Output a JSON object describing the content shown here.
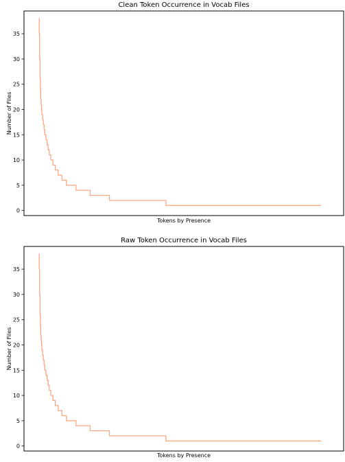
{
  "chart_data": [
    {
      "type": "line",
      "title": "Clean Token Occurrence in Vocab Files",
      "xlabel": "Tokens by Presence",
      "ylabel": "Number of Files",
      "ylim": [
        -1,
        39.5
      ],
      "xlim": [
        -40,
        820
      ],
      "yticks": [
        0,
        5,
        10,
        15,
        20,
        25,
        30,
        35
      ],
      "xticks_shown": false,
      "grid": false,
      "color": "#ffa07a",
      "points": [
        [
          0,
          38
        ],
        [
          1,
          35
        ],
        [
          2,
          30
        ],
        [
          3,
          26
        ],
        [
          4,
          24
        ],
        [
          5,
          22
        ],
        [
          6,
          21
        ],
        [
          7,
          20
        ],
        [
          8,
          19
        ],
        [
          10,
          18
        ],
        [
          12,
          17
        ],
        [
          14,
          16
        ],
        [
          16,
          15
        ],
        [
          19,
          14
        ],
        [
          22,
          13
        ],
        [
          25,
          12
        ],
        [
          28,
          11
        ],
        [
          32,
          10
        ],
        [
          38,
          9
        ],
        [
          44,
          8
        ],
        [
          52,
          7
        ],
        [
          62,
          6
        ],
        [
          74,
          5
        ],
        [
          100,
          4
        ],
        [
          138,
          3
        ],
        [
          190,
          2
        ],
        [
          342,
          1
        ],
        [
          760,
          1
        ]
      ]
    },
    {
      "type": "line",
      "title": "Raw Token Occurrence in Vocab Files",
      "xlabel": "Tokens by Presence",
      "ylabel": "Number of Files",
      "ylim": [
        -1,
        39.5
      ],
      "xlim": [
        -40,
        820
      ],
      "yticks": [
        0,
        5,
        10,
        15,
        20,
        25,
        30,
        35
      ],
      "xticks_shown": false,
      "grid": false,
      "color": "#ffa07a",
      "points": [
        [
          0,
          38
        ],
        [
          1,
          35
        ],
        [
          2,
          30
        ],
        [
          3,
          26
        ],
        [
          4,
          24
        ],
        [
          5,
          22
        ],
        [
          6,
          21
        ],
        [
          7,
          20
        ],
        [
          8,
          19
        ],
        [
          10,
          18
        ],
        [
          12,
          17
        ],
        [
          14,
          16
        ],
        [
          16,
          15
        ],
        [
          19,
          14
        ],
        [
          22,
          13
        ],
        [
          25,
          12
        ],
        [
          28,
          11
        ],
        [
          32,
          10
        ],
        [
          38,
          9
        ],
        [
          44,
          8
        ],
        [
          52,
          7
        ],
        [
          62,
          6
        ],
        [
          74,
          5
        ],
        [
          100,
          4
        ],
        [
          138,
          3
        ],
        [
          190,
          2
        ],
        [
          342,
          1
        ],
        [
          760,
          1
        ]
      ]
    }
  ]
}
